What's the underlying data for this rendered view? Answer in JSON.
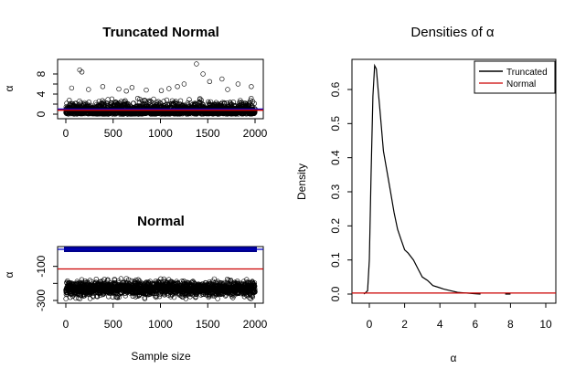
{
  "chart_data": [
    {
      "type": "scatter",
      "title": "Truncated Normal",
      "xlabel": "",
      "ylabel": "α",
      "xlim": [
        0,
        2000
      ],
      "ylim": [
        0,
        10
      ],
      "xticks": [
        "0",
        "500",
        "1000",
        "1500",
        "2000"
      ],
      "yticks": [
        "0",
        "4",
        "8"
      ],
      "y_tick_values": [
        0,
        2,
        4,
        6,
        8
      ],
      "points": {
        "count": 2000,
        "bulk_range": [
          0,
          3
        ],
        "outliers": [
          [
            147,
            8.8
          ],
          [
            170,
            8.4
          ],
          [
            62,
            5.2
          ],
          [
            390,
            5.5
          ],
          [
            560,
            5.0
          ],
          [
            700,
            5.3
          ],
          [
            850,
            4.8
          ],
          [
            1010,
            4.7
          ],
          [
            1180,
            5.5
          ],
          [
            1250,
            6.0
          ],
          [
            1381,
            10.0
          ],
          [
            1450,
            8.0
          ],
          [
            1520,
            6.5
          ],
          [
            1650,
            7.0
          ],
          [
            1820,
            6.0
          ],
          [
            1960,
            5.5
          ],
          [
            240,
            4.9
          ],
          [
            640,
            4.6
          ],
          [
            1090,
            5.1
          ],
          [
            1710,
            4.9
          ]
        ]
      },
      "hlines": [
        {
          "y": 1.0,
          "color": "#0000CC"
        },
        {
          "y": 0.8,
          "color": "#CC0000"
        }
      ],
      "colors": {
        "points": "#000000"
      }
    },
    {
      "type": "scatter",
      "title": "Normal",
      "xlabel": "Sample size",
      "ylabel": "α",
      "xlim": [
        0,
        2000
      ],
      "ylim": [
        -300,
        0
      ],
      "xticks": [
        "0",
        "500",
        "1000",
        "1500",
        "2000"
      ],
      "yticks": [
        "-300",
        "-100"
      ],
      "y_tick_values": [
        -300,
        -200,
        -100
      ],
      "points": {
        "count": 2000,
        "bulk_center": -230,
        "bulk_spread": 20
      },
      "top_band": {
        "y": 0,
        "color": "#00008B"
      },
      "hlines": [
        {
          "y": -115,
          "color": "#CC0000"
        }
      ],
      "colors": {
        "points": "#000000"
      }
    },
    {
      "type": "line",
      "title": "Densities of α",
      "xlabel": "α",
      "ylabel": "Density",
      "xlim": [
        0,
        10
      ],
      "ylim": [
        0,
        0.68
      ],
      "xticks": [
        "0",
        "2",
        "4",
        "6",
        "8",
        "10"
      ],
      "yticks": [
        "0.0",
        "0.1",
        "0.2",
        "0.3",
        "0.4",
        "0.5",
        "0.6"
      ],
      "series": [
        {
          "name": "Truncated",
          "color": "#000000",
          "x": [
            -0.3,
            -0.1,
            0.0,
            0.1,
            0.2,
            0.3,
            0.4,
            0.5,
            0.6,
            0.8,
            1.0,
            1.2,
            1.4,
            1.6,
            1.8,
            2.0,
            2.2,
            2.5,
            2.8,
            3.0,
            3.3,
            3.6,
            3.9,
            4.2,
            4.6,
            5.0,
            5.5,
            6.0,
            6.3
          ],
          "y": [
            0.0,
            0.01,
            0.1,
            0.35,
            0.58,
            0.67,
            0.66,
            0.6,
            0.54,
            0.42,
            0.36,
            0.3,
            0.24,
            0.19,
            0.16,
            0.13,
            0.12,
            0.1,
            0.07,
            0.05,
            0.04,
            0.025,
            0.02,
            0.015,
            0.01,
            0.005,
            0.003,
            0.001,
            0.0
          ]
        },
        {
          "name": "Normal",
          "color": "#CC0000",
          "x": [
            -1.0,
            11.0
          ],
          "y": [
            0.003,
            0.003
          ]
        }
      ],
      "extra_segments": [
        {
          "x": [
            7.7,
            8.0
          ],
          "y": [
            0.0,
            0.0
          ]
        }
      ],
      "legend_position": "top-right"
    }
  ]
}
